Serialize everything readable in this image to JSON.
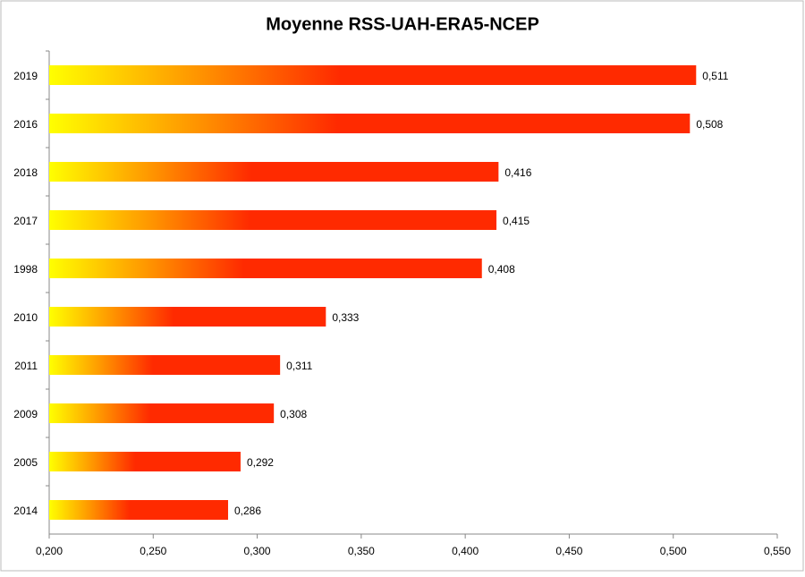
{
  "chart_data": {
    "type": "hbar",
    "title": "Moyenne RSS-UAH-ERA5-NCEP",
    "categories": [
      "2019",
      "2016",
      "2018",
      "2017",
      "1998",
      "2010",
      "2011",
      "2009",
      "2005",
      "2014"
    ],
    "values": [
      0.511,
      0.508,
      0.416,
      0.415,
      0.408,
      0.333,
      0.311,
      0.308,
      0.292,
      0.286
    ],
    "value_labels": [
      "0,511",
      "0,508",
      "0,416",
      "0,415",
      "0,408",
      "0,333",
      "0,311",
      "0,308",
      "0,292",
      "0,286"
    ],
    "gradient_colors": [
      "#ffff00",
      "#ff9900",
      "#ff2a00"
    ],
    "xlim": [
      0.2,
      0.55
    ],
    "xticks": [
      {
        "value": 0.2,
        "label": "0,200"
      },
      {
        "value": 0.25,
        "label": "0,250"
      },
      {
        "value": 0.3,
        "label": "0,300"
      },
      {
        "value": 0.35,
        "label": "0,350"
      },
      {
        "value": 0.4,
        "label": "0,400"
      },
      {
        "value": 0.45,
        "label": "0,450"
      },
      {
        "value": 0.5,
        "label": "0,500"
      },
      {
        "value": 0.55,
        "label": "0,550"
      }
    ]
  }
}
